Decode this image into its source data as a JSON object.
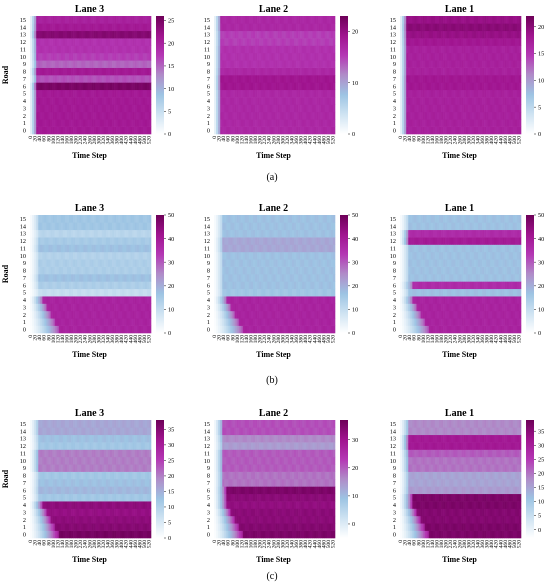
{
  "figure": {
    "panel_labels": [
      "(a)",
      "(b)",
      "(c)"
    ]
  },
  "colormap": {
    "name": "BuPu",
    "stops": [
      "#ffffff",
      "#cfe3f2",
      "#9dc4e3",
      "#b08cc8",
      "#b437b4",
      "#a0148f",
      "#6e0058"
    ]
  },
  "chart_data": [
    {
      "type": "heatmap",
      "panel": "(a)",
      "title": "Lane 3",
      "xlabel": "Time Step",
      "ylabel": "Road",
      "y": [
        0,
        1,
        2,
        3,
        4,
        5,
        6,
        7,
        8,
        9,
        10,
        11,
        12,
        13,
        14,
        15
      ],
      "x_ticks": [
        "0",
        "20",
        "40",
        "60",
        "80",
        "100",
        "120",
        "140",
        "160",
        "180",
        "200",
        "220",
        "240",
        "260",
        "280",
        "300",
        "320",
        "340",
        "360",
        "380",
        "400",
        "420",
        "440",
        "460",
        "480",
        "500",
        "520"
      ],
      "colorbar": {
        "min": 0,
        "max": 26,
        "ticks": [
          0,
          5,
          10,
          15,
          20,
          25
        ]
      },
      "rows": [
        {
          "road": 0,
          "value": 21
        },
        {
          "road": 1,
          "value": 21
        },
        {
          "road": 2,
          "value": 21
        },
        {
          "road": 3,
          "value": 21
        },
        {
          "road": 4,
          "value": 21
        },
        {
          "road": 5,
          "value": 21
        },
        {
          "road": 6,
          "value": 25
        },
        {
          "road": 7,
          "value": 16
        },
        {
          "road": 8,
          "value": 21
        },
        {
          "road": 9,
          "value": 15
        },
        {
          "road": 10,
          "value": 17
        },
        {
          "road": 11,
          "value": 18
        },
        {
          "road": 12,
          "value": 18
        },
        {
          "road": 13,
          "value": 24
        },
        {
          "road": 14,
          "value": 21
        },
        {
          "road": 15,
          "value": 20
        }
      ]
    },
    {
      "type": "heatmap",
      "panel": "(a)",
      "title": "Lane 2",
      "xlabel": "Time Step",
      "ylabel": "",
      "y": [
        0,
        1,
        2,
        3,
        4,
        5,
        6,
        7,
        8,
        9,
        10,
        11,
        12,
        13,
        14,
        15
      ],
      "x_ticks": [
        "0",
        "20",
        "40",
        "60",
        "80",
        "100",
        "120",
        "140",
        "160",
        "180",
        "200",
        "220",
        "240",
        "260",
        "280",
        "300",
        "320",
        "340",
        "360",
        "380",
        "400",
        "420",
        "440",
        "460",
        "480",
        "500",
        "520"
      ],
      "colorbar": {
        "min": 0,
        "max": 23,
        "ticks": [
          0,
          10,
          20
        ]
      },
      "rows": [
        {
          "road": 0,
          "value": 17
        },
        {
          "road": 1,
          "value": 17
        },
        {
          "road": 2,
          "value": 17
        },
        {
          "road": 3,
          "value": 17
        },
        {
          "road": 4,
          "value": 17
        },
        {
          "road": 5,
          "value": 17
        },
        {
          "road": 6,
          "value": 19
        },
        {
          "road": 7,
          "value": 19
        },
        {
          "road": 8,
          "value": 17
        },
        {
          "road": 9,
          "value": 16
        },
        {
          "road": 10,
          "value": 16
        },
        {
          "road": 11,
          "value": 16
        },
        {
          "road": 12,
          "value": 15
        },
        {
          "road": 13,
          "value": 15
        },
        {
          "road": 14,
          "value": 17
        },
        {
          "road": 15,
          "value": 17
        }
      ]
    },
    {
      "type": "heatmap",
      "panel": "(a)",
      "title": "Lane 1",
      "xlabel": "Time Step",
      "ylabel": "",
      "y": [
        0,
        1,
        2,
        3,
        4,
        5,
        6,
        7,
        8,
        9,
        10,
        11,
        12,
        13,
        14,
        15
      ],
      "x_ticks": [
        "0",
        "20",
        "40",
        "60",
        "80",
        "100",
        "120",
        "140",
        "160",
        "180",
        "200",
        "220",
        "240",
        "260",
        "280",
        "300",
        "320",
        "340",
        "360",
        "380",
        "400",
        "420",
        "440",
        "460",
        "480",
        "500",
        "520"
      ],
      "colorbar": {
        "min": 0,
        "max": 22,
        "ticks": [
          0,
          5,
          10,
          15,
          20
        ]
      },
      "rows": [
        {
          "road": 0,
          "value": 17
        },
        {
          "road": 1,
          "value": 17
        },
        {
          "road": 2,
          "value": 17
        },
        {
          "road": 3,
          "value": 17
        },
        {
          "road": 4,
          "value": 17
        },
        {
          "road": 5,
          "value": 17
        },
        {
          "road": 6,
          "value": 18
        },
        {
          "road": 7,
          "value": 18
        },
        {
          "road": 8,
          "value": 17
        },
        {
          "road": 9,
          "value": 17
        },
        {
          "road": 10,
          "value": 17
        },
        {
          "road": 11,
          "value": 17
        },
        {
          "road": 12,
          "value": 18
        },
        {
          "road": 13,
          "value": 19
        },
        {
          "road": 14,
          "value": 20
        },
        {
          "road": 15,
          "value": 19
        }
      ]
    },
    {
      "type": "heatmap",
      "panel": "(b)",
      "title": "Lane 3",
      "xlabel": "Time Step",
      "ylabel": "Road",
      "y": [
        0,
        1,
        2,
        3,
        4,
        5,
        6,
        7,
        8,
        9,
        10,
        11,
        12,
        13,
        14,
        15
      ],
      "x_ticks": [
        "0",
        "20",
        "40",
        "60",
        "80",
        "100",
        "120",
        "140",
        "160",
        "180",
        "200",
        "220",
        "240",
        "260",
        "280",
        "300",
        "320",
        "340",
        "360",
        "380",
        "400",
        "420",
        "440",
        "460",
        "480",
        "500",
        "520"
      ],
      "colorbar": {
        "min": 0,
        "max": 50,
        "ticks": [
          0,
          10,
          20,
          30,
          40,
          50
        ]
      },
      "rows": [
        {
          "road": 0,
          "value": 38
        },
        {
          "road": 1,
          "value": 38
        },
        {
          "road": 2,
          "value": 38
        },
        {
          "road": 3,
          "value": 38
        },
        {
          "road": 4,
          "value": 38
        },
        {
          "road": 5,
          "value": 10
        },
        {
          "road": 6,
          "value": 14
        },
        {
          "road": 7,
          "value": 17
        },
        {
          "road": 8,
          "value": 14
        },
        {
          "road": 9,
          "value": 14
        },
        {
          "road": 10,
          "value": 13
        },
        {
          "road": 11,
          "value": 17
        },
        {
          "road": 12,
          "value": 15
        },
        {
          "road": 13,
          "value": 12
        },
        {
          "road": 14,
          "value": 16
        },
        {
          "road": 15,
          "value": 16
        }
      ]
    },
    {
      "type": "heatmap",
      "panel": "(b)",
      "title": "Lane 2",
      "xlabel": "Time Step",
      "ylabel": "",
      "y": [
        0,
        1,
        2,
        3,
        4,
        5,
        6,
        7,
        8,
        9,
        10,
        11,
        12,
        13,
        14,
        15
      ],
      "x_ticks": [
        "0",
        "20",
        "40",
        "60",
        "80",
        "100",
        "120",
        "140",
        "160",
        "180",
        "200",
        "220",
        "240",
        "260",
        "280",
        "300",
        "320",
        "340",
        "360",
        "380",
        "400",
        "420",
        "440",
        "460",
        "480",
        "500",
        "520"
      ],
      "colorbar": {
        "min": 0,
        "max": 50,
        "ticks": [
          0,
          10,
          20,
          30,
          40,
          50
        ]
      },
      "rows": [
        {
          "road": 0,
          "value": 38
        },
        {
          "road": 1,
          "value": 38
        },
        {
          "road": 2,
          "value": 38
        },
        {
          "road": 3,
          "value": 38
        },
        {
          "road": 4,
          "value": 38
        },
        {
          "road": 5,
          "value": 16
        },
        {
          "road": 6,
          "value": 17
        },
        {
          "road": 7,
          "value": 17
        },
        {
          "road": 8,
          "value": 17
        },
        {
          "road": 9,
          "value": 17
        },
        {
          "road": 10,
          "value": 17
        },
        {
          "road": 11,
          "value": 21
        },
        {
          "road": 12,
          "value": 21
        },
        {
          "road": 13,
          "value": 17
        },
        {
          "road": 14,
          "value": 17
        },
        {
          "road": 15,
          "value": 17
        }
      ]
    },
    {
      "type": "heatmap",
      "panel": "(b)",
      "title": "Lane 1",
      "xlabel": "Time Step",
      "ylabel": "",
      "y": [
        0,
        1,
        2,
        3,
        4,
        5,
        6,
        7,
        8,
        9,
        10,
        11,
        12,
        13,
        14,
        15
      ],
      "x_ticks": [
        "0",
        "20",
        "40",
        "60",
        "80",
        "100",
        "120",
        "140",
        "160",
        "180",
        "200",
        "220",
        "240",
        "260",
        "280",
        "300",
        "320",
        "340",
        "360",
        "380",
        "400",
        "420",
        "440",
        "460",
        "480",
        "500",
        "520"
      ],
      "colorbar": {
        "min": 0,
        "max": 50,
        "ticks": [
          0,
          10,
          20,
          30,
          40,
          50
        ]
      },
      "rows": [
        {
          "road": 0,
          "value": 38
        },
        {
          "road": 1,
          "value": 38
        },
        {
          "road": 2,
          "value": 38
        },
        {
          "road": 3,
          "value": 38
        },
        {
          "road": 4,
          "value": 38
        },
        {
          "road": 5,
          "value": 17
        },
        {
          "road": 6,
          "value": 36
        },
        {
          "road": 7,
          "value": 17
        },
        {
          "road": 8,
          "value": 17
        },
        {
          "road": 9,
          "value": 17
        },
        {
          "road": 10,
          "value": 17
        },
        {
          "road": 11,
          "value": 17
        },
        {
          "road": 12,
          "value": 40
        },
        {
          "road": 13,
          "value": 36
        },
        {
          "road": 14,
          "value": 17
        },
        {
          "road": 15,
          "value": 17
        }
      ]
    },
    {
      "type": "heatmap",
      "panel": "(c)",
      "title": "Lane 3",
      "xlabel": "Time Step",
      "ylabel": "Road",
      "y": [
        0,
        1,
        2,
        3,
        4,
        5,
        6,
        7,
        8,
        9,
        10,
        11,
        12,
        13,
        14,
        15
      ],
      "x_ticks": [
        "0",
        "20",
        "40",
        "60",
        "80",
        "100",
        "120",
        "140",
        "160",
        "180",
        "200",
        "220",
        "240",
        "260",
        "280",
        "300",
        "320",
        "340",
        "360",
        "380",
        "400",
        "420",
        "440",
        "460",
        "480",
        "500",
        "520"
      ],
      "colorbar": {
        "min": 0,
        "max": 38,
        "ticks": [
          0,
          5,
          10,
          15,
          20,
          25,
          30,
          35
        ]
      },
      "rows": [
        {
          "road": 0,
          "value": 37
        },
        {
          "road": 1,
          "value": 35
        },
        {
          "road": 2,
          "value": 34
        },
        {
          "road": 3,
          "value": 33
        },
        {
          "road": 4,
          "value": 34
        },
        {
          "road": 5,
          "value": 12
        },
        {
          "road": 6,
          "value": 14
        },
        {
          "road": 7,
          "value": 13
        },
        {
          "road": 8,
          "value": 12
        },
        {
          "road": 9,
          "value": 20
        },
        {
          "road": 10,
          "value": 20
        },
        {
          "road": 11,
          "value": 20
        },
        {
          "road": 12,
          "value": 12
        },
        {
          "road": 13,
          "value": 13
        },
        {
          "road": 14,
          "value": 16
        },
        {
          "road": 15,
          "value": 16
        }
      ]
    },
    {
      "type": "heatmap",
      "panel": "(c)",
      "title": "Lane 2",
      "xlabel": "Time Step",
      "ylabel": "",
      "y": [
        0,
        1,
        2,
        3,
        4,
        5,
        6,
        7,
        8,
        9,
        10,
        11,
        12,
        13,
        14,
        15
      ],
      "x_ticks": [
        "0",
        "20",
        "40",
        "60",
        "80",
        "100",
        "120",
        "140",
        "160",
        "180",
        "200",
        "220",
        "240",
        "260",
        "280",
        "300",
        "320",
        "340",
        "360",
        "380",
        "400",
        "420",
        "440",
        "460",
        "480",
        "500",
        "520"
      ],
      "colorbar": {
        "min": -5,
        "max": 37,
        "ticks": [
          0,
          10,
          20,
          30
        ]
      },
      "rows": [
        {
          "road": 0,
          "value": 35
        },
        {
          "road": 1,
          "value": 34
        },
        {
          "road": 2,
          "value": 33
        },
        {
          "road": 3,
          "value": 33
        },
        {
          "road": 4,
          "value": 32
        },
        {
          "road": 5,
          "value": 33
        },
        {
          "road": 6,
          "value": 35
        },
        {
          "road": 7,
          "value": 18
        },
        {
          "road": 8,
          "value": 18
        },
        {
          "road": 9,
          "value": 20
        },
        {
          "road": 10,
          "value": 20
        },
        {
          "road": 11,
          "value": 20
        },
        {
          "road": 12,
          "value": 14
        },
        {
          "road": 13,
          "value": 16
        },
        {
          "road": 14,
          "value": 21
        },
        {
          "road": 15,
          "value": 21
        }
      ]
    },
    {
      "type": "heatmap",
      "panel": "(c)",
      "title": "Lane 1",
      "xlabel": "Time Step",
      "ylabel": "",
      "y": [
        0,
        1,
        2,
        3,
        4,
        5,
        6,
        7,
        8,
        9,
        10,
        11,
        12,
        13,
        14,
        15
      ],
      "x_ticks": [
        "0",
        "20",
        "40",
        "60",
        "80",
        "100",
        "120",
        "140",
        "160",
        "180",
        "200",
        "220",
        "240",
        "260",
        "280",
        "300",
        "320",
        "340",
        "360",
        "380",
        "400",
        "420",
        "440",
        "460",
        "480",
        "500",
        "520"
      ],
      "colorbar": {
        "min": -3,
        "max": 39,
        "ticks": [
          0,
          5,
          10,
          15,
          20,
          25,
          30,
          35
        ]
      },
      "rows": [
        {
          "road": 0,
          "value": 37
        },
        {
          "road": 1,
          "value": 37
        },
        {
          "road": 2,
          "value": 36
        },
        {
          "road": 3,
          "value": 36
        },
        {
          "road": 4,
          "value": 37
        },
        {
          "road": 5,
          "value": 37
        },
        {
          "road": 6,
          "value": 16
        },
        {
          "road": 7,
          "value": 15
        },
        {
          "road": 8,
          "value": 15
        },
        {
          "road": 9,
          "value": 20
        },
        {
          "road": 10,
          "value": 20
        },
        {
          "road": 11,
          "value": 22
        },
        {
          "road": 12,
          "value": 31
        },
        {
          "road": 13,
          "value": 31
        },
        {
          "road": 14,
          "value": 18
        },
        {
          "road": 15,
          "value": 18
        }
      ]
    }
  ]
}
